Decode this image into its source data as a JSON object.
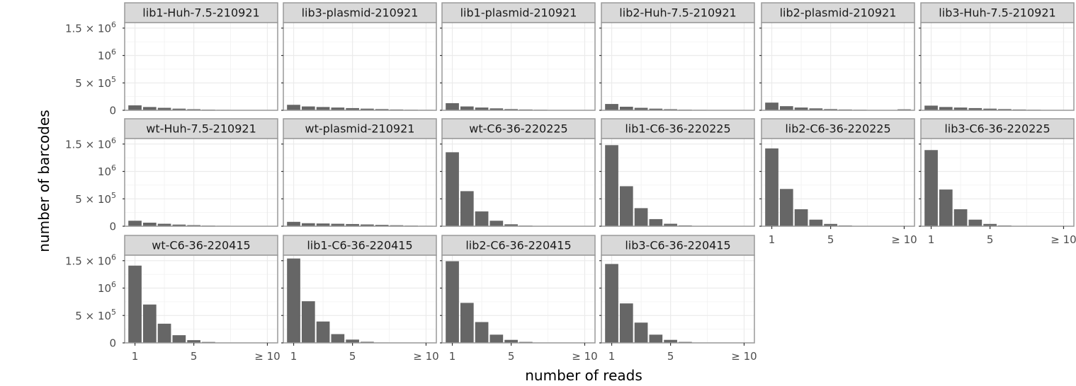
{
  "chart_data": {
    "type": "bar",
    "xlabel": "number of reads",
    "ylabel": "number of barcodes",
    "x": [
      1,
      2,
      3,
      4,
      5,
      6,
      7,
      8,
      9,
      10
    ],
    "x_ticks": [
      1,
      5,
      10
    ],
    "x_tick_labels": [
      "1",
      "5",
      "≥ 10"
    ],
    "ylim": [
      0,
      1600000
    ],
    "y_ticks": [
      0,
      500000,
      1000000,
      1500000
    ],
    "y_tick_labels": [
      {
        "mantissa": "0",
        "times": "",
        "base": "",
        "exp": ""
      },
      {
        "mantissa": "5",
        "times": " × ",
        "base": "10",
        "exp": "5"
      },
      {
        "mantissa": "",
        "times": "",
        "base": "10",
        "exp": "6"
      },
      {
        "mantissa": "1.5",
        "times": " × ",
        "base": "10",
        "exp": "6"
      }
    ],
    "grid": true,
    "bar_color": "#666666",
    "strip_color": "#d9d9d9",
    "panels": [
      {
        "title": "lib1-Huh-7.5-210921",
        "values": [
          90000,
          60000,
          45000,
          30000,
          20000,
          12000,
          8000,
          5000,
          3000,
          6000
        ]
      },
      {
        "title": "lib3-plasmid-210921",
        "values": [
          100000,
          70000,
          60000,
          50000,
          40000,
          30000,
          22000,
          15000,
          10000,
          8000
        ]
      },
      {
        "title": "lib1-plasmid-210921",
        "values": [
          130000,
          70000,
          50000,
          35000,
          22000,
          15000,
          10000,
          6000,
          4000,
          4000
        ]
      },
      {
        "title": "lib2-Huh-7.5-210921",
        "values": [
          115000,
          65000,
          45000,
          30000,
          20000,
          12000,
          8000,
          5000,
          3000,
          3000
        ]
      },
      {
        "title": "lib2-plasmid-210921",
        "values": [
          140000,
          75000,
          50000,
          35000,
          22000,
          15000,
          10000,
          6000,
          4000,
          18000
        ]
      },
      {
        "title": "lib3-Huh-7.5-210921",
        "values": [
          85000,
          60000,
          50000,
          40000,
          30000,
          22000,
          15000,
          10000,
          6000,
          5000
        ]
      },
      {
        "title": "wt-Huh-7.5-210921",
        "values": [
          100000,
          65000,
          45000,
          30000,
          20000,
          12000,
          8000,
          5000,
          3000,
          3000
        ]
      },
      {
        "title": "wt-plasmid-210921",
        "values": [
          80000,
          55000,
          50000,
          45000,
          40000,
          32000,
          25000,
          18000,
          12000,
          8000
        ]
      },
      {
        "title": "wt-C6-36-220225",
        "values": [
          1350000,
          640000,
          270000,
          100000,
          35000,
          12000,
          5000,
          2000,
          1000,
          1000
        ]
      },
      {
        "title": "lib1-C6-36-220225",
        "values": [
          1480000,
          730000,
          330000,
          130000,
          45000,
          15000,
          6000,
          2500,
          1000,
          1000
        ]
      },
      {
        "title": "lib2-C6-36-220225",
        "values": [
          1420000,
          680000,
          310000,
          120000,
          42000,
          14000,
          5000,
          2000,
          1000,
          1000
        ]
      },
      {
        "title": "lib3-C6-36-220225",
        "values": [
          1390000,
          670000,
          310000,
          120000,
          42000,
          14000,
          5000,
          2000,
          1000,
          1000
        ]
      },
      {
        "title": "wt-C6-36-220415",
        "values": [
          1410000,
          700000,
          350000,
          140000,
          50000,
          17000,
          6000,
          2500,
          1000,
          1000
        ]
      },
      {
        "title": "lib1-C6-36-220415",
        "values": [
          1540000,
          760000,
          390000,
          160000,
          60000,
          20000,
          7000,
          3000,
          1200,
          1000
        ]
      },
      {
        "title": "lib2-C6-36-220415",
        "values": [
          1490000,
          730000,
          380000,
          150000,
          55000,
          18000,
          6500,
          2500,
          1000,
          1000
        ]
      },
      {
        "title": "lib3-C6-36-220415",
        "values": [
          1440000,
          720000,
          370000,
          150000,
          55000,
          18000,
          6500,
          2500,
          1000,
          1000
        ]
      }
    ]
  }
}
